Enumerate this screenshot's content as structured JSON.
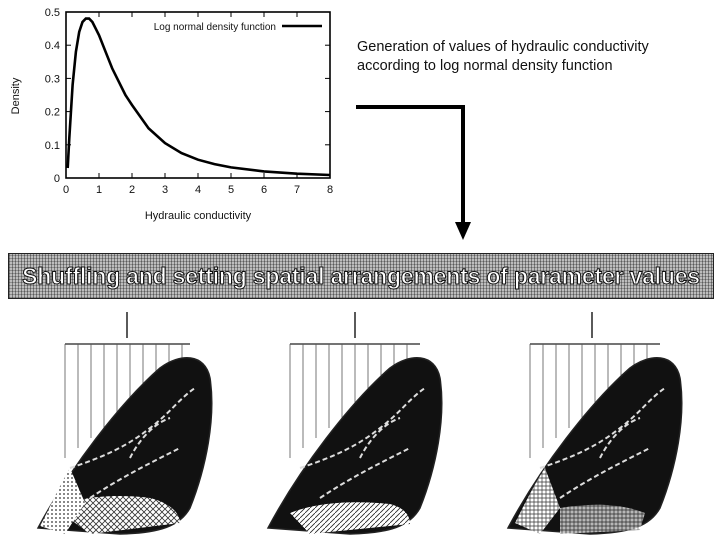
{
  "chart_data": {
    "type": "line",
    "title": "",
    "xlabel": "Hydraulic conductivity",
    "ylabel": "Density",
    "xlim": [
      0,
      8
    ],
    "ylim": [
      0,
      0.5
    ],
    "xticks": [
      0,
      1,
      2,
      3,
      4,
      5,
      6,
      7,
      8
    ],
    "yticks": [
      0,
      0.1,
      0.2,
      0.3,
      0.4,
      0.5
    ],
    "ytick_labels": [
      "0",
      "0.1",
      "0.2",
      "0.3",
      "0.4",
      "0.5"
    ],
    "legend_position": "top-right",
    "series": [
      {
        "name": "Log normal density function",
        "color": "#000000",
        "x": [
          0.05,
          0.1,
          0.2,
          0.3,
          0.4,
          0.5,
          0.6,
          0.7,
          0.8,
          0.9,
          1.0,
          1.2,
          1.4,
          1.6,
          1.8,
          2.0,
          2.5,
          3.0,
          3.5,
          4.0,
          4.5,
          5.0,
          6.0,
          7.0,
          8.0
        ],
        "y": [
          0.03,
          0.12,
          0.28,
          0.38,
          0.44,
          0.47,
          0.48,
          0.48,
          0.47,
          0.45,
          0.43,
          0.38,
          0.33,
          0.29,
          0.25,
          0.22,
          0.15,
          0.105,
          0.075,
          0.055,
          0.042,
          0.032,
          0.02,
          0.013,
          0.009
        ]
      }
    ]
  },
  "description": {
    "line1": "Generation of values of hydraulic conductivity",
    "line2": "according to log normal density function"
  },
  "banner": {
    "text": "Shuffling and setting spatial arrangements of parameter values"
  }
}
